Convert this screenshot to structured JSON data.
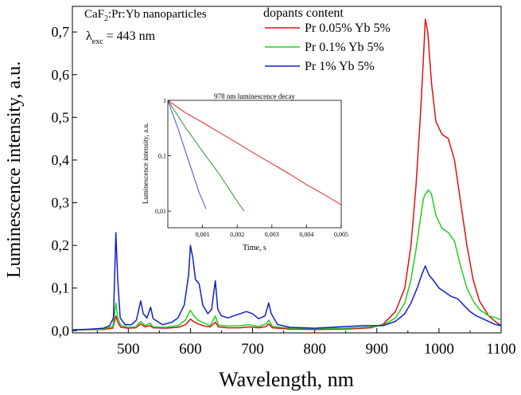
{
  "chart_data": [
    {
      "type": "line",
      "annotation_lines": {
        "material": "CaF",
        "material_sub": "2",
        "material_rest": ":Pr:Yb nanoparticles",
        "lambda": "λ",
        "lambda_sub": "exc",
        "lambda_value": " = 443 nm"
      },
      "legend_title": "dopants content",
      "legend_position": "top-right",
      "xlabel": "Wavelength, nm",
      "ylabel": "Luminescence intensity, a.u.",
      "xlim": [
        410,
        1100
      ],
      "ylim": [
        -0.005,
        0.76
      ],
      "xticks": [
        "500",
        "600",
        "700",
        "800",
        "900",
        "1000",
        "1100"
      ],
      "yticks": [
        "0,0",
        "0,1",
        "0,2",
        "0,3",
        "0,4",
        "0,5",
        "0,6",
        "0,7"
      ],
      "grid": false,
      "series": [
        {
          "name": "Pr 0.05% Yb 5%",
          "color": "#e01010",
          "points": [
            [
              410,
              0.002
            ],
            [
              460,
              0.003
            ],
            [
              475,
              0.006
            ],
            [
              480,
              0.035
            ],
            [
              483,
              0.02
            ],
            [
              488,
              0.008
            ],
            [
              500,
              0.006
            ],
            [
              512,
              0.007
            ],
            [
              520,
              0.016
            ],
            [
              527,
              0.009
            ],
            [
              535,
              0.012
            ],
            [
              540,
              0.007
            ],
            [
              560,
              0.006
            ],
            [
              580,
              0.008
            ],
            [
              592,
              0.014
            ],
            [
              600,
              0.027
            ],
            [
              606,
              0.021
            ],
            [
              612,
              0.016
            ],
            [
              622,
              0.011
            ],
            [
              632,
              0.009
            ],
            [
              640,
              0.02
            ],
            [
              645,
              0.009
            ],
            [
              660,
              0.007
            ],
            [
              680,
              0.007
            ],
            [
              695,
              0.009
            ],
            [
              710,
              0.007
            ],
            [
              722,
              0.01
            ],
            [
              726,
              0.016
            ],
            [
              732,
              0.007
            ],
            [
              760,
              0.004
            ],
            [
              800,
              0.003
            ],
            [
              850,
              0.004
            ],
            [
              890,
              0.007
            ],
            [
              910,
              0.015
            ],
            [
              930,
              0.045
            ],
            [
              945,
              0.1
            ],
            [
              955,
              0.2
            ],
            [
              963,
              0.34
            ],
            [
              970,
              0.5
            ],
            [
              975,
              0.64
            ],
            [
              978,
              0.73
            ],
            [
              982,
              0.7
            ],
            [
              988,
              0.58
            ],
            [
              995,
              0.49
            ],
            [
              1005,
              0.46
            ],
            [
              1015,
              0.45
            ],
            [
              1025,
              0.4
            ],
            [
              1035,
              0.3
            ],
            [
              1045,
              0.2
            ],
            [
              1055,
              0.12
            ],
            [
              1065,
              0.07
            ],
            [
              1080,
              0.035
            ],
            [
              1092,
              0.02
            ],
            [
              1100,
              0.012
            ]
          ]
        },
        {
          "name": "Pr 0.1% Yb 5%",
          "color": "#20d020",
          "points": [
            [
              410,
              0.002
            ],
            [
              460,
              0.004
            ],
            [
              475,
              0.01
            ],
            [
              480,
              0.065
            ],
            [
              483,
              0.03
            ],
            [
              488,
              0.012
            ],
            [
              500,
              0.008
            ],
            [
              512,
              0.009
            ],
            [
              520,
              0.022
            ],
            [
              527,
              0.012
            ],
            [
              535,
              0.018
            ],
            [
              540,
              0.009
            ],
            [
              560,
              0.008
            ],
            [
              580,
              0.012
            ],
            [
              592,
              0.025
            ],
            [
              600,
              0.048
            ],
            [
              606,
              0.034
            ],
            [
              612,
              0.025
            ],
            [
              622,
              0.018
            ],
            [
              632,
              0.012
            ],
            [
              640,
              0.035
            ],
            [
              645,
              0.013
            ],
            [
              660,
              0.011
            ],
            [
              680,
              0.012
            ],
            [
              695,
              0.014
            ],
            [
              710,
              0.01
            ],
            [
              722,
              0.016
            ],
            [
              726,
              0.025
            ],
            [
              732,
              0.01
            ],
            [
              760,
              0.006
            ],
            [
              800,
              0.005
            ],
            [
              850,
              0.006
            ],
            [
              890,
              0.009
            ],
            [
              910,
              0.013
            ],
            [
              930,
              0.03
            ],
            [
              945,
              0.065
            ],
            [
              955,
              0.12
            ],
            [
              963,
              0.19
            ],
            [
              970,
              0.26
            ],
            [
              975,
              0.31
            ],
            [
              978,
              0.32
            ],
            [
              983,
              0.33
            ],
            [
              988,
              0.32
            ],
            [
              995,
              0.27
            ],
            [
              1005,
              0.24
            ],
            [
              1015,
              0.23
            ],
            [
              1025,
              0.21
            ],
            [
              1035,
              0.15
            ],
            [
              1045,
              0.1
            ],
            [
              1055,
              0.07
            ],
            [
              1065,
              0.05
            ],
            [
              1080,
              0.035
            ],
            [
              1092,
              0.03
            ],
            [
              1100,
              0.025
            ]
          ]
        },
        {
          "name": "Pr 1% Yb 5%",
          "color": "#1020c8",
          "points": [
            [
              410,
              0.002
            ],
            [
              440,
              0.004
            ],
            [
              460,
              0.006
            ],
            [
              470,
              0.012
            ],
            [
              476,
              0.03
            ],
            [
              480,
              0.23
            ],
            [
              483,
              0.12
            ],
            [
              487,
              0.03
            ],
            [
              495,
              0.014
            ],
            [
              505,
              0.014
            ],
            [
              513,
              0.025
            ],
            [
              520,
              0.07
            ],
            [
              524,
              0.04
            ],
            [
              530,
              0.03
            ],
            [
              536,
              0.055
            ],
            [
              540,
              0.028
            ],
            [
              555,
              0.014
            ],
            [
              570,
              0.02
            ],
            [
              580,
              0.03
            ],
            [
              590,
              0.06
            ],
            [
              597,
              0.13
            ],
            [
              600,
              0.2
            ],
            [
              604,
              0.17
            ],
            [
              608,
              0.12
            ],
            [
              614,
              0.11
            ],
            [
              620,
              0.06
            ],
            [
              628,
              0.04
            ],
            [
              634,
              0.05
            ],
            [
              640,
              0.117
            ],
            [
              644,
              0.05
            ],
            [
              650,
              0.035
            ],
            [
              660,
              0.03
            ],
            [
              670,
              0.035
            ],
            [
              680,
              0.04
            ],
            [
              690,
              0.045
            ],
            [
              700,
              0.04
            ],
            [
              710,
              0.028
            ],
            [
              720,
              0.035
            ],
            [
              726,
              0.065
            ],
            [
              730,
              0.04
            ],
            [
              740,
              0.015
            ],
            [
              760,
              0.008
            ],
            [
              800,
              0.006
            ],
            [
              850,
              0.01
            ],
            [
              880,
              0.012
            ],
            [
              910,
              0.012
            ],
            [
              930,
              0.022
            ],
            [
              945,
              0.04
            ],
            [
              955,
              0.065
            ],
            [
              965,
              0.1
            ],
            [
              972,
              0.13
            ],
            [
              978,
              0.152
            ],
            [
              984,
              0.13
            ],
            [
              990,
              0.12
            ],
            [
              1000,
              0.1
            ],
            [
              1010,
              0.09
            ],
            [
              1020,
              0.08
            ],
            [
              1030,
              0.075
            ],
            [
              1040,
              0.06
            ],
            [
              1050,
              0.045
            ],
            [
              1060,
              0.035
            ],
            [
              1075,
              0.025
            ],
            [
              1090,
              0.015
            ],
            [
              1100,
              0.012
            ]
          ]
        }
      ]
    },
    {
      "type": "line",
      "title": "978 nm luminescence decay",
      "xlabel": "Time, s",
      "ylabel": "Luminescence intensity, a.u.",
      "xlim": [
        0,
        0.005
      ],
      "ylim": [
        0.005,
        1
      ],
      "yscale": "log",
      "xticks": [
        "0,001",
        "0,002",
        "0,003",
        "0,004",
        "0,005"
      ],
      "yticks": [
        "1",
        "0,1",
        "0,01"
      ],
      "grid": false,
      "series": [
        {
          "color": "#e01010",
          "points": [
            [
              0,
              1
            ],
            [
              0.0005,
              0.6
            ],
            [
              0.001,
              0.4
            ],
            [
              0.0015,
              0.26
            ],
            [
              0.002,
              0.17
            ],
            [
              0.0025,
              0.11
            ],
            [
              0.003,
              0.072
            ],
            [
              0.0035,
              0.047
            ],
            [
              0.004,
              0.03
            ],
            [
              0.0045,
              0.02
            ],
            [
              0.005,
              0.013
            ]
          ]
        },
        {
          "color": "#208020",
          "points": [
            [
              0,
              1
            ],
            [
              0.0005,
              0.33
            ],
            [
              0.001,
              0.12
            ],
            [
              0.0015,
              0.045
            ],
            [
              0.002,
              0.015
            ],
            [
              0.0022,
              0.01
            ]
          ]
        },
        {
          "color": "#3040c8",
          "points": [
            [
              0,
              1
            ],
            [
              0.0003,
              0.3
            ],
            [
              0.0006,
              0.08
            ],
            [
              0.0009,
              0.022
            ],
            [
              0.0011,
              0.011
            ]
          ]
        }
      ]
    }
  ]
}
